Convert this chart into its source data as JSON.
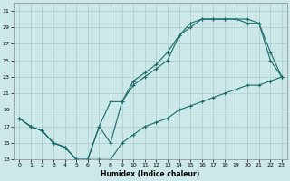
{
  "xlabel": "Humidex (Indice chaleur)",
  "background_color": "#cde8e8",
  "grid_color": "#aacccc",
  "line_color": "#1a6b6b",
  "xlim": [
    -0.5,
    23.5
  ],
  "ylim": [
    13,
    32
  ],
  "yticks": [
    13,
    15,
    17,
    19,
    21,
    23,
    25,
    27,
    29,
    31
  ],
  "xticks": [
    0,
    1,
    2,
    3,
    4,
    5,
    6,
    7,
    8,
    9,
    10,
    11,
    12,
    13,
    14,
    15,
    16,
    17,
    18,
    19,
    20,
    21,
    22,
    23
  ],
  "line1_x": [
    0,
    1,
    2,
    3,
    4,
    5,
    6,
    7,
    8,
    9,
    10,
    11,
    12,
    13,
    14,
    15,
    16,
    17,
    18,
    19,
    20,
    21,
    22,
    23
  ],
  "line1_y": [
    18,
    17,
    16.5,
    15,
    14.5,
    13,
    13,
    13,
    13,
    15,
    16,
    17,
    17.5,
    18,
    19,
    19.5,
    20,
    20.5,
    21,
    21.5,
    22,
    22,
    22.5,
    23
  ],
  "line2_x": [
    0,
    1,
    2,
    3,
    4,
    5,
    6,
    7,
    8,
    9,
    10,
    11,
    12,
    13,
    14,
    15,
    16,
    17,
    18,
    19,
    20,
    21,
    22,
    23
  ],
  "line2_y": [
    18,
    17,
    16.5,
    15,
    14.5,
    13,
    13,
    17,
    15,
    20,
    22,
    23,
    24,
    25,
    28,
    29,
    30,
    30,
    30,
    30,
    30,
    29.5,
    26,
    23
  ],
  "line3_x": [
    0,
    1,
    2,
    3,
    4,
    5,
    6,
    7,
    8,
    9,
    10,
    11,
    12,
    13,
    14,
    15,
    16,
    17,
    18,
    19,
    20,
    21,
    22,
    23
  ],
  "line3_y": [
    18,
    17,
    16.5,
    15,
    14.5,
    13,
    13,
    17,
    20,
    20,
    22.5,
    23.5,
    24.5,
    26,
    28,
    29.5,
    30,
    30,
    30,
    30,
    29.5,
    29.5,
    25,
    23
  ]
}
